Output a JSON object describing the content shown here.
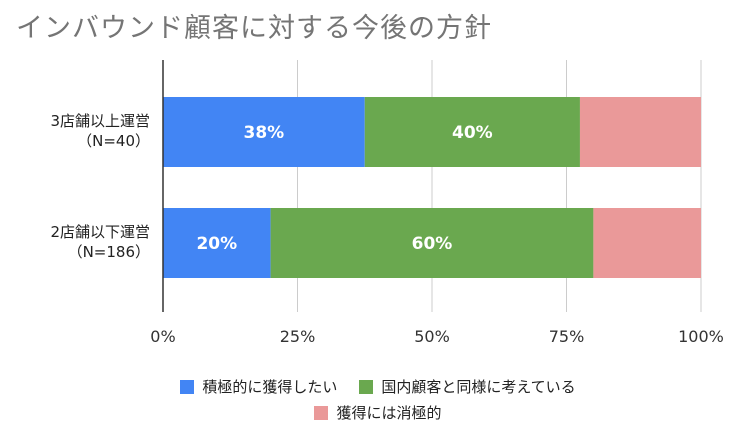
{
  "chart_data": {
    "type": "bar",
    "orientation": "horizontal",
    "stacked": true,
    "percent": true,
    "title": "インバウンド顧客に対する今後の方針",
    "categories": [
      "3店舗以上運営\n（N=40）",
      "2店舗以下運営\n（N=186）"
    ],
    "series": [
      {
        "name": "積極的に獲得したい",
        "color": "#4285f4",
        "values": [
          37.5,
          20
        ],
        "labels": [
          "38%",
          "20%"
        ]
      },
      {
        "name": "国内顧客と同様に考えている",
        "color": "#6aa84f",
        "values": [
          40,
          60
        ],
        "labels": [
          "40%",
          "60%"
        ]
      },
      {
        "name": "獲得には消極的",
        "color": "#ea9999",
        "values": [
          22.5,
          20
        ],
        "labels": [
          "",
          ""
        ]
      }
    ],
    "xlim": [
      0,
      100
    ],
    "xticks": [
      "0%",
      "25%",
      "50%",
      "75%",
      "100%"
    ],
    "grid": true,
    "legend_position": "bottom"
  }
}
